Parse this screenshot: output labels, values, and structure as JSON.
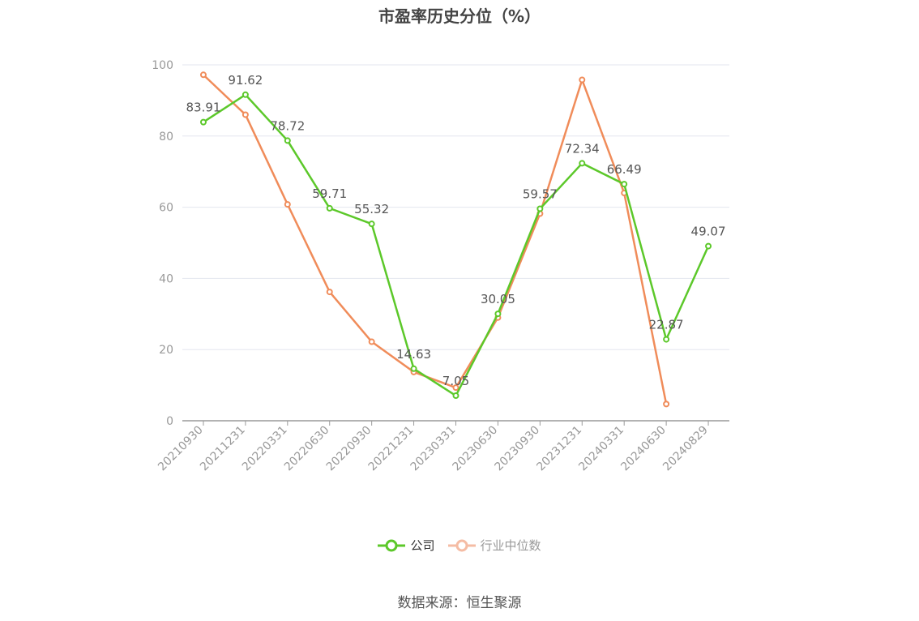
{
  "chart_data": {
    "type": "line",
    "title": "市盈率历史分位（%）",
    "categories": [
      "20210930",
      "20211231",
      "20220331",
      "20220630",
      "20220930",
      "20221231",
      "20230331",
      "20230630",
      "20230930",
      "20231231",
      "20240331",
      "20240630",
      "20240829"
    ],
    "series": [
      {
        "name": "公司",
        "color": "#5cc82a",
        "values": [
          83.91,
          91.62,
          78.72,
          59.71,
          55.32,
          14.63,
          7.05,
          30.05,
          59.57,
          72.34,
          66.49,
          22.87,
          49.07
        ],
        "labels": [
          "83.91",
          "91.62",
          "78.72",
          "59.71",
          "55.32",
          "14.63",
          "7.05",
          "30.05",
          "59.57",
          "72.34",
          "66.49",
          "22.87",
          "49.07"
        ]
      },
      {
        "name": "行业中位数",
        "color": "#f08c5a",
        "values": [
          97.2,
          86.0,
          60.8,
          36.2,
          22.2,
          13.7,
          9.3,
          29.0,
          58.2,
          95.8,
          64.0,
          4.7,
          null
        ]
      }
    ],
    "ylim": [
      0,
      100
    ],
    "yticks": [
      0,
      20,
      40,
      60,
      80,
      100
    ],
    "grid": true,
    "legend_position": "bottom"
  },
  "legend": {
    "company_label": "公司",
    "industry_label": "行业中位数"
  },
  "source": "数据来源：恒生聚源"
}
